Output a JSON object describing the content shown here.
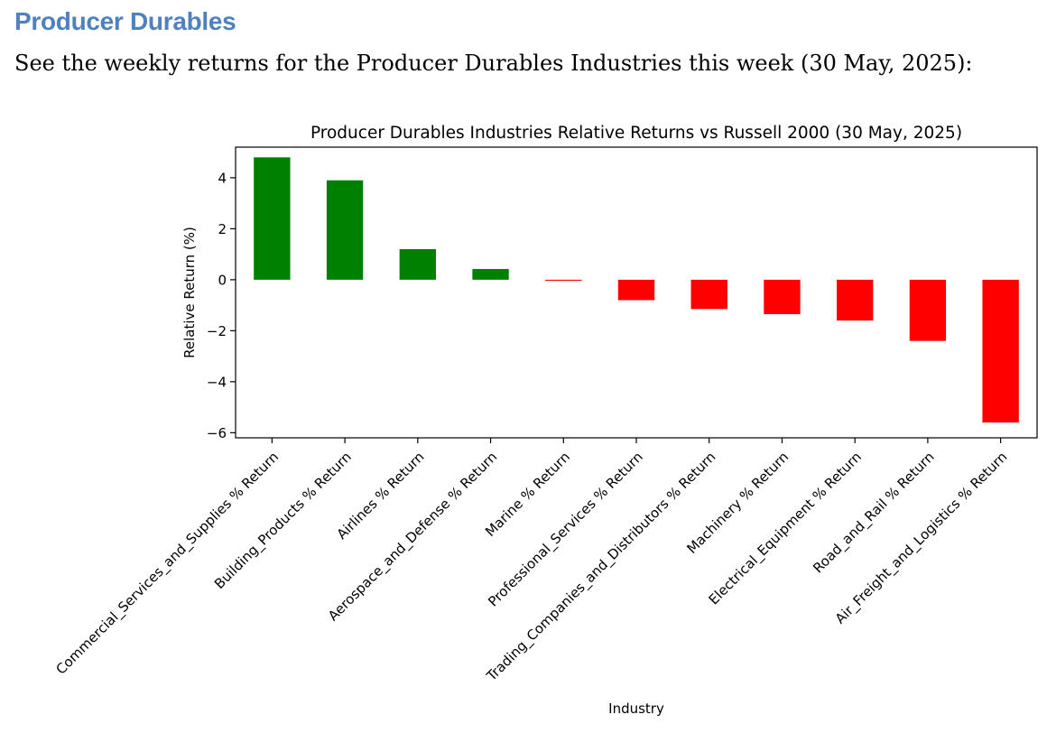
{
  "page": {
    "heading": "Producer Durables",
    "intro": "See the weekly returns for the Producer Durables Industries this week (30 May, 2025):"
  },
  "chart_data": {
    "type": "bar",
    "title": "Producer Durables Industries Relative Returns vs Russell 2000 (30 May, 2025)",
    "xlabel": "Industry",
    "ylabel": "Relative Return (%)",
    "ylim": [
      -6.2,
      5.2
    ],
    "yticks": [
      -6,
      -4,
      -2,
      0,
      2,
      4
    ],
    "ytick_labels": [
      "−6",
      "−4",
      "−2",
      "0",
      "2",
      "4"
    ],
    "grid": false,
    "positive_color": "#008000",
    "negative_color": "#ff0000",
    "categories": [
      "Commercial_Services_and_Supplies % Return",
      "Building_Products % Return",
      "Airlines % Return",
      "Aerospace_and_Defense % Return",
      "Marine % Return",
      "Professional_Services % Return",
      "Trading_Companies_and_Distributors % Return",
      "Machinery % Return",
      "Electrical_Equipment % Return",
      "Road_and_Rail % Return",
      "Air_Freight_and_Logistics % Return"
    ],
    "values": [
      4.8,
      3.9,
      1.2,
      0.42,
      -0.04,
      -0.8,
      -1.15,
      -1.35,
      -1.6,
      -2.4,
      -5.6
    ]
  }
}
